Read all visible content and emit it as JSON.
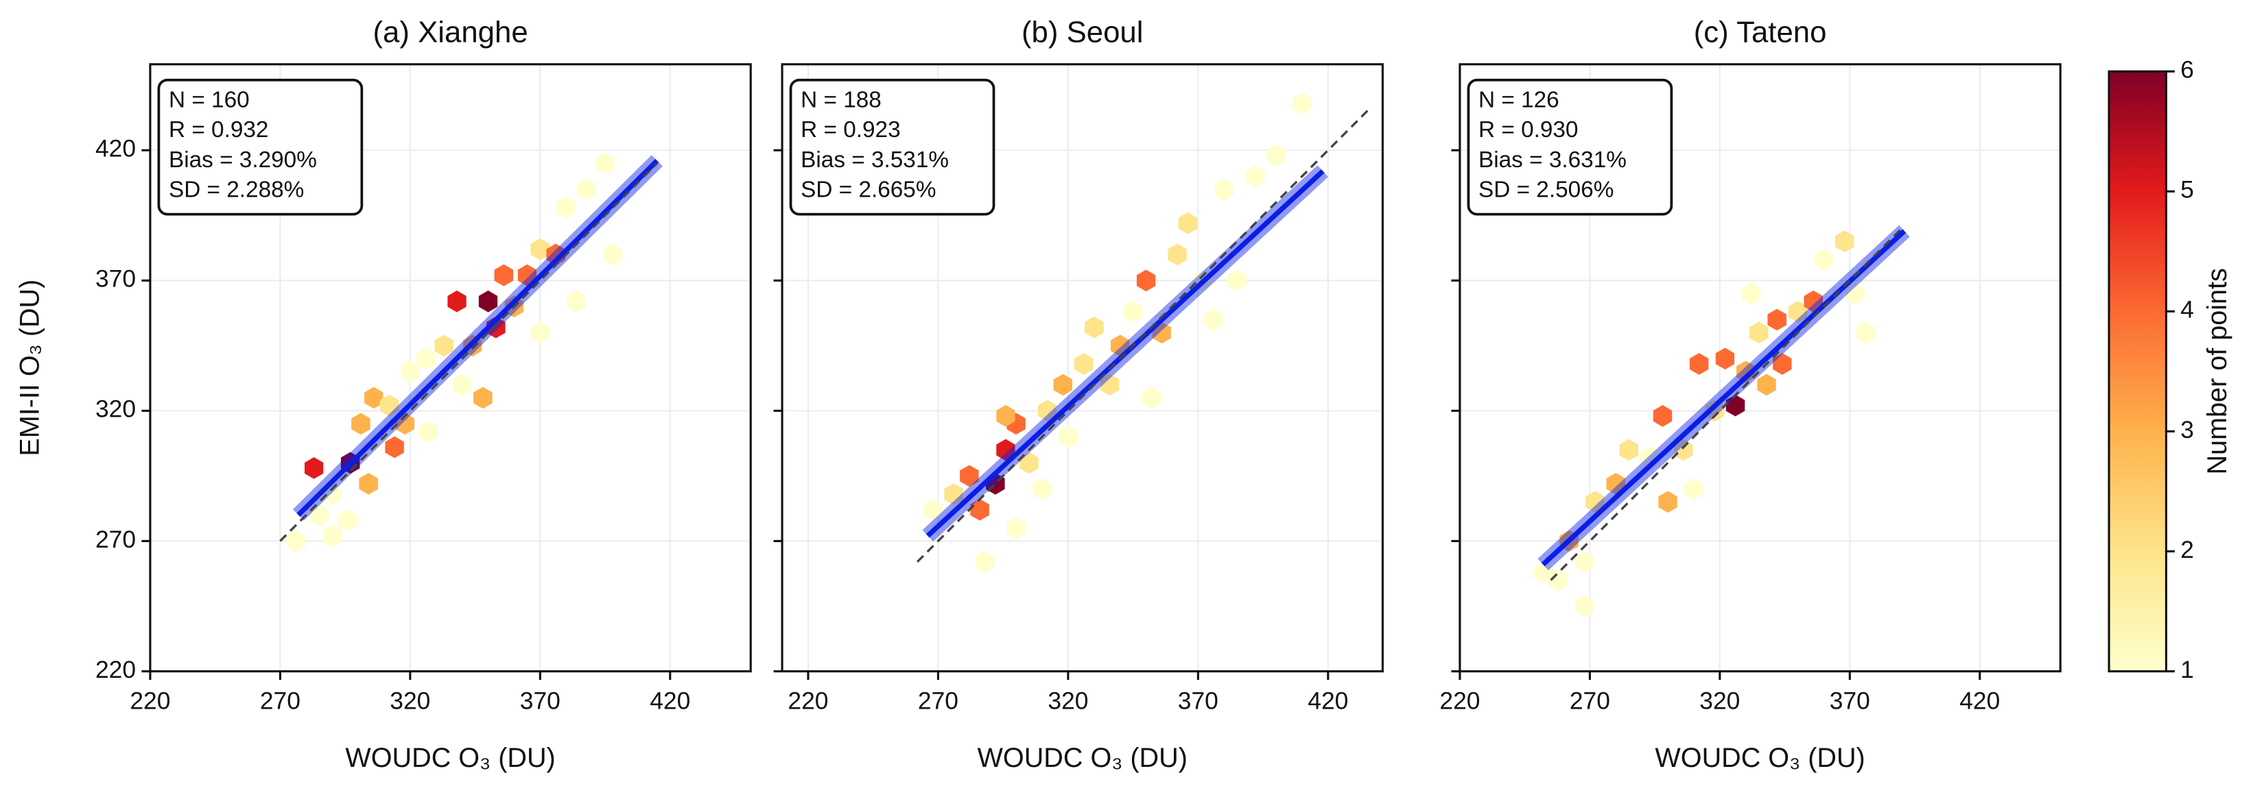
{
  "chart_data": [
    {
      "type": "hexbin",
      "title": "(a) Xianghe",
      "xlabel": "WOUDC O₃ (DU)",
      "ylabel": "EMI-II O₃ (DU)",
      "show_ytick_labels": true,
      "xlim": [
        220,
        451
      ],
      "ylim": [
        220,
        453
      ],
      "xticks": [
        220,
        270,
        320,
        370,
        420
      ],
      "yticks": [
        220,
        270,
        320,
        370,
        420
      ],
      "grid": true,
      "stats": [
        "N = 160",
        "R = 0.932",
        "Bias = 3.290%",
        "SD = 2.288%"
      ],
      "hexbins": [
        [
          276,
          270,
          1
        ],
        [
          290,
          272,
          1
        ],
        [
          283,
          298,
          5
        ],
        [
          290,
          288,
          1
        ],
        [
          297,
          300,
          6
        ],
        [
          301,
          315,
          3
        ],
        [
          304,
          292,
          3
        ],
        [
          306,
          325,
          3
        ],
        [
          312,
          322,
          2
        ],
        [
          314,
          306,
          4
        ],
        [
          318,
          315,
          3
        ],
        [
          320,
          335,
          1
        ],
        [
          326,
          340,
          1
        ],
        [
          333,
          345,
          2
        ],
        [
          338,
          362,
          5
        ],
        [
          344,
          345,
          3
        ],
        [
          348,
          325,
          3
        ],
        [
          350,
          362,
          6
        ],
        [
          353,
          352,
          5
        ],
        [
          356,
          372,
          4
        ],
        [
          360,
          360,
          3
        ],
        [
          365,
          372,
          4
        ],
        [
          370,
          382,
          2
        ],
        [
          376,
          380,
          4
        ],
        [
          380,
          398,
          1
        ],
        [
          388,
          405,
          1
        ],
        [
          395,
          415,
          1
        ],
        [
          398,
          380,
          1
        ],
        [
          384,
          362,
          1
        ],
        [
          327,
          312,
          1
        ],
        [
          296,
          278,
          1
        ],
        [
          285,
          280,
          1
        ],
        [
          340,
          330,
          1
        ],
        [
          370,
          350,
          1
        ]
      ],
      "fit": {
        "x": [
          277,
          415
        ],
        "y": [
          280,
          416
        ],
        "color": "#0a1ee6"
      },
      "reference": {
        "x": [
          270,
          415
        ],
        "y": [
          270,
          415
        ],
        "color": "#444444"
      }
    },
    {
      "type": "hexbin",
      "title": "(b) Seoul",
      "xlabel": "WOUDC O₃ (DU)",
      "show_ytick_labels": false,
      "xlim": [
        210,
        441
      ],
      "ylim": [
        220,
        453
      ],
      "xticks": [
        220,
        270,
        320,
        370,
        420
      ],
      "yticks": [
        220,
        270,
        320,
        370,
        420
      ],
      "grid": true,
      "stats": [
        "N = 188",
        "R = 0.923",
        "Bias = 3.531%",
        "SD = 2.665%"
      ],
      "hexbins": [
        [
          268,
          282,
          1
        ],
        [
          276,
          288,
          2
        ],
        [
          282,
          295,
          4
        ],
        [
          286,
          282,
          4
        ],
        [
          292,
          292,
          6
        ],
        [
          296,
          305,
          5
        ],
        [
          300,
          315,
          4
        ],
        [
          296,
          318,
          3
        ],
        [
          305,
          300,
          2
        ],
        [
          310,
          290,
          1
        ],
        [
          288,
          262,
          1
        ],
        [
          300,
          275,
          1
        ],
        [
          312,
          320,
          2
        ],
        [
          318,
          330,
          3
        ],
        [
          326,
          338,
          2
        ],
        [
          330,
          352,
          2
        ],
        [
          336,
          330,
          2
        ],
        [
          340,
          345,
          3
        ],
        [
          345,
          358,
          1
        ],
        [
          350,
          370,
          4
        ],
        [
          356,
          350,
          3
        ],
        [
          362,
          380,
          2
        ],
        [
          366,
          392,
          2
        ],
        [
          372,
          370,
          1
        ],
        [
          376,
          355,
          1
        ],
        [
          385,
          370,
          1
        ],
        [
          380,
          405,
          1
        ],
        [
          392,
          410,
          1
        ],
        [
          400,
          418,
          1
        ],
        [
          410,
          438,
          1
        ],
        [
          352,
          325,
          1
        ],
        [
          320,
          310,
          1
        ]
      ],
      "fit": {
        "x": [
          266,
          418
        ],
        "y": [
          272,
          412
        ],
        "color": "#0a1ee6"
      },
      "reference": {
        "x": [
          262,
          436
        ],
        "y": [
          262,
          436
        ],
        "color": "#444444"
      }
    },
    {
      "type": "hexbin",
      "title": "(c) Tateno",
      "xlabel": "WOUDC O₃ (DU)",
      "show_ytick_labels": false,
      "xlim": [
        220,
        451
      ],
      "ylim": [
        220,
        453
      ],
      "xticks": [
        220,
        270,
        320,
        370,
        420
      ],
      "yticks": [
        220,
        270,
        320,
        370,
        420
      ],
      "grid": true,
      "stats": [
        "N = 126",
        "R = 0.930",
        "Bias = 3.631%",
        "SD = 2.506%"
      ],
      "hexbins": [
        [
          252,
          258,
          1
        ],
        [
          262,
          270,
          3
        ],
        [
          268,
          262,
          1
        ],
        [
          272,
          285,
          2
        ],
        [
          280,
          292,
          3
        ],
        [
          285,
          305,
          2
        ],
        [
          293,
          302,
          1
        ],
        [
          298,
          318,
          4
        ],
        [
          300,
          285,
          3
        ],
        [
          306,
          305,
          2
        ],
        [
          312,
          338,
          4
        ],
        [
          318,
          320,
          2
        ],
        [
          322,
          340,
          4
        ],
        [
          326,
          322,
          6
        ],
        [
          330,
          335,
          3
        ],
        [
          335,
          350,
          2
        ],
        [
          338,
          330,
          3
        ],
        [
          342,
          355,
          4
        ],
        [
          344,
          338,
          4
        ],
        [
          350,
          358,
          2
        ],
        [
          356,
          362,
          4
        ],
        [
          360,
          378,
          1
        ],
        [
          368,
          385,
          2
        ],
        [
          372,
          365,
          1
        ],
        [
          376,
          350,
          1
        ],
        [
          332,
          365,
          1
        ],
        [
          310,
          290,
          1
        ],
        [
          258,
          255,
          1
        ],
        [
          268,
          245,
          1
        ]
      ],
      "fit": {
        "x": [
          252,
          391
        ],
        "y": [
          261,
          389
        ],
        "color": "#0a1ee6"
      },
      "reference": {
        "x": [
          255,
          390
        ],
        "y": [
          255,
          390
        ],
        "color": "#444444"
      }
    }
  ],
  "colorbar": {
    "label": "Number of points",
    "lim": [
      1,
      6
    ],
    "ticks": [
      1,
      2,
      3,
      4,
      5,
      6
    ],
    "colors": [
      "#ffffcc",
      "#fee48a",
      "#feb24c",
      "#fc6a32",
      "#e31a1c",
      "#800026"
    ]
  }
}
